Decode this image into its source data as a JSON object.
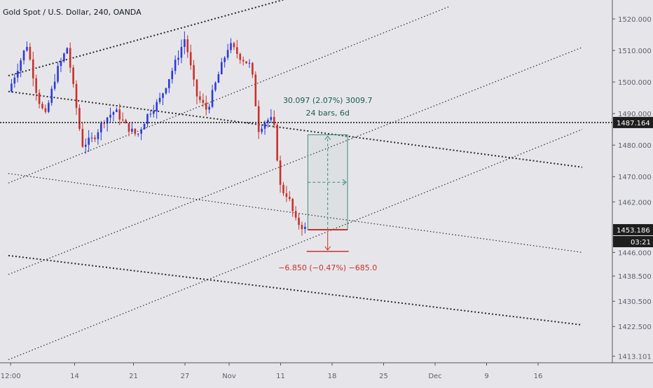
{
  "chart_data": {
    "type": "candlestick",
    "title": "Gold Spot / U.S. Dollar, 240, OANDA",
    "price_axis": {
      "range": [
        1411,
        1526
      ],
      "ticks": [
        "1520.000",
        "1510.000",
        "1500.000",
        "1490.000",
        "1480.000",
        "1470.000",
        "1462.000",
        "1446.000",
        "1438.500",
        "1430.500",
        "1422.500",
        "1413.101"
      ],
      "tick_values": [
        1520,
        1510,
        1500,
        1490,
        1480,
        1470,
        1462,
        1446,
        1438.5,
        1430.5,
        1422.5,
        1413.101
      ]
    },
    "time_axis": {
      "ticks": [
        "12:00",
        "14",
        "21",
        "27",
        "Nov",
        "11",
        "18",
        "25",
        "Dec",
        "9",
        "16"
      ],
      "tick_positions": [
        0.3,
        9,
        17,
        24,
        30,
        37,
        44,
        51,
        58,
        65,
        72
      ]
    },
    "reference_line": {
      "label": "1487.164",
      "value": 1487.164
    },
    "last_price": {
      "label": "1453.186",
      "value": 1453.186,
      "countdown": "03:21"
    },
    "measure": {
      "from_bar": 40.7,
      "to_bar": 46.1,
      "start_price": 1453.186,
      "end_price": 1483.283,
      "label_line1": "30.097 (2.07%) 3009.7",
      "label_line2": "24 bars, 6d",
      "down_label": "−6.850 (−0.47%) −685.0",
      "down_price": 1446.3
    },
    "trendlines": [
      {
        "style": "dotted",
        "weight": 2,
        "p1": [
          0,
          1502
        ],
        "p2": [
          59,
          1540
        ]
      },
      {
        "style": "dotted",
        "weight": 1.2,
        "p1": [
          0,
          1468
        ],
        "p2": [
          60,
          1524
        ]
      },
      {
        "style": "dotted",
        "weight": 1.2,
        "p1": [
          0,
          1439
        ],
        "p2": [
          78,
          1511
        ]
      },
      {
        "style": "dotted",
        "weight": 1.2,
        "p1": [
          0,
          1412
        ],
        "p2": [
          78,
          1485
        ]
      },
      {
        "style": "dotted",
        "weight": 2,
        "p1": [
          0,
          1497
        ],
        "p2": [
          78,
          1473
        ]
      },
      {
        "style": "dotted",
        "weight": 1.2,
        "p1": [
          0,
          1471
        ],
        "p2": [
          78,
          1446
        ]
      },
      {
        "style": "dotted",
        "weight": 2,
        "p1": [
          0,
          1445
        ],
        "p2": [
          78,
          1423
        ]
      }
    ],
    "colors": {
      "up": "#2b3bd8",
      "down": "#c8312b",
      "measure": "#3d8a78",
      "background": "#e6e6ea"
    }
  }
}
